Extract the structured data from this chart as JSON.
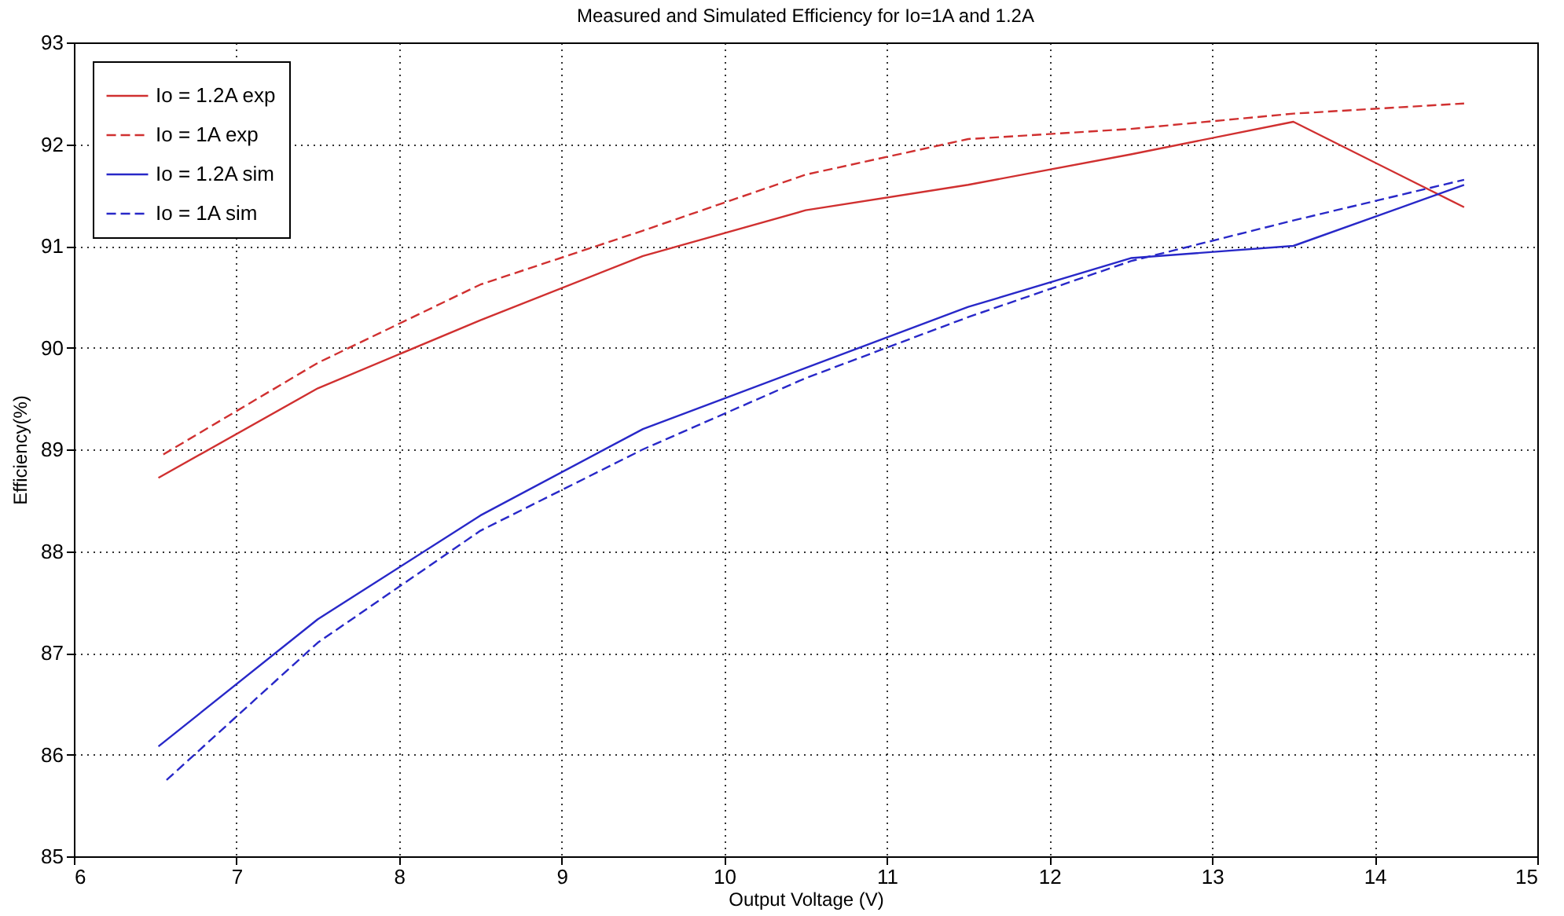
{
  "chart_data": {
    "type": "line",
    "title": "Measured and Simulated Efficiency for Io=1A and 1.2A",
    "xlabel": "Output Voltage (V)",
    "ylabel": "Efficiency(%)",
    "xlim": [
      6,
      15
    ],
    "xticks": [
      6,
      7,
      8,
      9,
      10,
      11,
      12,
      13,
      14,
      15
    ],
    "ylim": [
      85,
      93
    ],
    "yticks": [
      85,
      86,
      87,
      88,
      89,
      90,
      91,
      92,
      93
    ],
    "grid": true,
    "legend": "top left",
    "marker": "none",
    "series": [
      {
        "name": "Io = 1.2A exp",
        "color": "#d03030",
        "line_style": "solid",
        "x": [
          6.52,
          7.5,
          8.5,
          9.5,
          10.5,
          11.5,
          12.5,
          13.5,
          14.55
        ],
        "values": [
          88.72,
          89.6,
          90.27,
          90.9,
          91.35,
          91.6,
          91.9,
          92.22,
          91.38
        ]
      },
      {
        "name": "Io = 1A exp",
        "color": "#d03030",
        "line_style": "dashed",
        "x": [
          6.55,
          7.5,
          8.5,
          9.5,
          10.5,
          11.5,
          12.5,
          13.5,
          14.55
        ],
        "values": [
          88.95,
          89.85,
          90.62,
          91.15,
          91.7,
          92.05,
          92.15,
          92.3,
          92.4
        ]
      },
      {
        "name": "Io = 1.2A sim",
        "color": "#2828c8",
        "line_style": "solid",
        "x": [
          6.52,
          7.5,
          8.5,
          9.5,
          10.5,
          11.5,
          12.5,
          13.5,
          14.55
        ],
        "values": [
          86.08,
          87.33,
          88.35,
          89.2,
          89.8,
          90.4,
          90.88,
          91.0,
          91.6
        ]
      },
      {
        "name": "Io = 1A sim",
        "color": "#2828c8",
        "line_style": "dashed",
        "x": [
          6.57,
          7.5,
          8.5,
          9.5,
          10.5,
          11.5,
          12.5,
          13.5,
          14.55
        ],
        "values": [
          85.75,
          87.1,
          88.2,
          89.0,
          89.7,
          90.3,
          90.85,
          91.25,
          91.65
        ]
      }
    ]
  }
}
